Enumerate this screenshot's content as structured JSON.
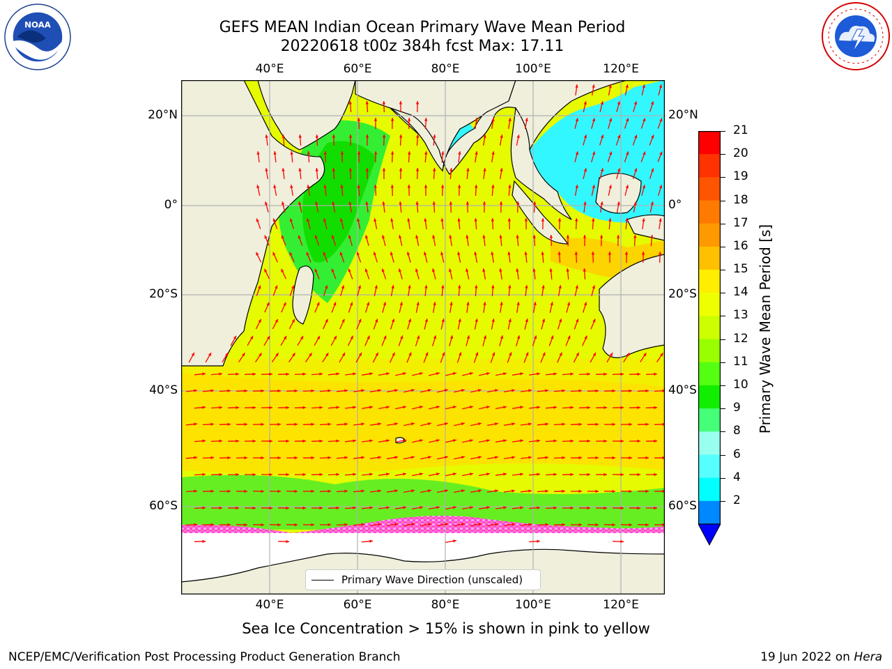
{
  "title_line1": "GEFS MEAN Indian Ocean Primary Wave Mean Period",
  "title_line2": "20220618 t00z 384h fcst   Max: 17.11",
  "lon_labels": [
    "40°E",
    "60°E",
    "80°E",
    "100°E",
    "120°E"
  ],
  "lat_labels": [
    "20°N",
    "0°",
    "20°S",
    "40°S",
    "60°S"
  ],
  "colorbar": {
    "label": "Primary Wave Mean Period [s]",
    "ticks": [
      "21",
      "20",
      "19",
      "18",
      "17",
      "16",
      "15",
      "14",
      "13",
      "12",
      "11",
      "10",
      "9",
      "8",
      "6",
      "4",
      "2"
    ],
    "colors": [
      "#ff0000",
      "#ff3300",
      "#ff5500",
      "#ff7a00",
      "#ff9900",
      "#ffc000",
      "#ffee00",
      "#eeff00",
      "#ccff00",
      "#99ff00",
      "#55ff11",
      "#11ee00",
      "#44ff77",
      "#99ffee",
      "#55ffff",
      "#00ffff",
      "#0088ff",
      "#0000ff"
    ]
  },
  "map_colors": {
    "land": "#efefdc",
    "ocean": "#e6fa00",
    "ice": "#ffffff",
    "arrow": "#ff0000",
    "grid": "#b0b0b0"
  },
  "legend_label": "Primary Wave Direction (unscaled)",
  "note": "Sea Ice Concentration > 15% is shown in pink to yellow",
  "footer_left": "NCEP/EMC/Verification Post Processing Product Generation Branch",
  "footer_right_date": "19 Jun 2022 on ",
  "footer_right_host": "Hera",
  "logos": {
    "left": "noaa-logo",
    "right": "nws-logo"
  }
}
